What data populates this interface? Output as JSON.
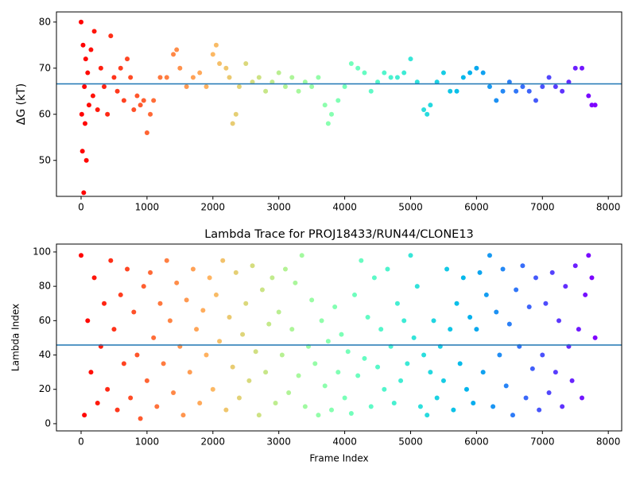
{
  "chart_data": [
    {
      "type": "scatter",
      "y_label": "ΔG (kT)",
      "x": [
        0,
        10,
        20,
        30,
        40,
        50,
        60,
        70,
        80,
        100,
        120,
        150,
        180,
        200,
        250,
        300,
        350,
        400,
        450,
        500,
        550,
        600,
        650,
        700,
        750,
        800,
        850,
        900,
        950,
        1000,
        1050,
        1100,
        1200,
        1300,
        1400,
        1450,
        1500,
        1600,
        1700,
        1800,
        1900,
        2000,
        2050,
        2100,
        2200,
        2250,
        2300,
        2350,
        2400,
        2500,
        2600,
        2700,
        2800,
        2900,
        3000,
        3100,
        3200,
        3300,
        3400,
        3500,
        3600,
        3700,
        3750,
        3800,
        3900,
        4000,
        4100,
        4200,
        4300,
        4400,
        4500,
        4600,
        4700,
        4800,
        4900,
        5000,
        5100,
        5200,
        5250,
        5300,
        5400,
        5500,
        5600,
        5700,
        5800,
        5900,
        6000,
        6100,
        6200,
        6300,
        6400,
        6500,
        6600,
        6700,
        6800,
        6900,
        7000,
        7100,
        7200,
        7300,
        7400,
        7500,
        7600,
        7700,
        7750,
        7800
      ],
      "values": [
        80,
        60,
        52,
        75,
        43,
        66,
        58,
        72,
        50,
        69,
        62,
        74,
        64,
        78,
        61,
        70,
        66,
        60,
        77,
        68,
        65,
        70,
        63,
        72,
        68,
        61,
        64,
        62,
        63,
        56,
        60,
        63,
        68,
        68,
        73,
        74,
        70,
        66,
        68,
        69,
        66,
        73,
        75,
        71,
        70,
        68,
        58,
        60,
        66,
        71,
        67,
        68,
        65,
        67,
        69,
        66,
        68,
        65,
        67,
        66,
        68,
        62,
        58,
        60,
        63,
        66,
        71,
        70,
        69,
        65,
        67,
        69,
        68,
        68,
        69,
        72,
        67,
        61,
        60,
        62,
        67,
        69,
        65,
        65,
        68,
        69,
        70,
        69,
        66,
        63,
        65,
        67,
        65,
        66,
        65,
        63,
        66,
        68,
        66,
        65,
        67,
        70,
        70,
        64,
        62,
        62
      ],
      "colormap": "rainbow_r",
      "hline": 66.6,
      "hline_color": "#1f77b4",
      "xlim": [
        -374,
        8203
      ],
      "ylim": [
        42.2,
        82.2
      ],
      "xticks": [
        0,
        1000,
        2000,
        3000,
        4000,
        5000,
        6000,
        7000,
        8000
      ],
      "yticks": [
        50,
        60,
        70,
        80
      ]
    },
    {
      "type": "scatter",
      "title": "Lambda Trace for PROJ18433/RUN44/CLONE13",
      "x_label": "Frame Index",
      "y_label": "Lambda Index",
      "x": [
        0,
        50,
        100,
        150,
        200,
        250,
        300,
        350,
        400,
        450,
        500,
        550,
        600,
        650,
        700,
        750,
        800,
        850,
        900,
        950,
        1000,
        1050,
        1100,
        1150,
        1200,
        1250,
        1300,
        1350,
        1400,
        1450,
        1500,
        1550,
        1600,
        1650,
        1700,
        1750,
        1800,
        1850,
        1900,
        1950,
        2000,
        2050,
        2100,
        2150,
        2200,
        2250,
        2300,
        2350,
        2400,
        2450,
        2500,
        2550,
        2600,
        2650,
        2700,
        2750,
        2800,
        2850,
        2900,
        2950,
        3000,
        3050,
        3100,
        3150,
        3200,
        3250,
        3300,
        3350,
        3400,
        3450,
        3500,
        3550,
        3600,
        3650,
        3700,
        3750,
        3800,
        3850,
        3900,
        3950,
        4000,
        4050,
        4100,
        4150,
        4200,
        4250,
        4300,
        4350,
        4400,
        4450,
        4500,
        4550,
        4600,
        4650,
        4700,
        4750,
        4800,
        4850,
        4900,
        4950,
        5000,
        5050,
        5100,
        5150,
        5200,
        5250,
        5300,
        5350,
        5400,
        5450,
        5500,
        5550,
        5600,
        5650,
        5700,
        5750,
        5800,
        5850,
        5900,
        5950,
        6000,
        6050,
        6100,
        6150,
        6200,
        6250,
        6300,
        6350,
        6400,
        6450,
        6500,
        6550,
        6600,
        6650,
        6700,
        6750,
        6800,
        6850,
        6900,
        6950,
        7000,
        7050,
        7100,
        7150,
        7200,
        7250,
        7300,
        7350,
        7400,
        7450,
        7500,
        7550,
        7600,
        7650,
        7700,
        7750,
        7800
      ],
      "values": [
        98,
        5,
        60,
        30,
        85,
        12,
        45,
        70,
        20,
        95,
        55,
        8,
        75,
        35,
        90,
        15,
        65,
        40,
        3,
        80,
        25,
        88,
        50,
        10,
        70,
        35,
        95,
        60,
        18,
        82,
        45,
        5,
        72,
        30,
        90,
        55,
        12,
        66,
        40,
        85,
        20,
        75,
        48,
        95,
        8,
        62,
        33,
        88,
        15,
        52,
        70,
        25,
        92,
        42,
        5,
        78,
        30,
        58,
        85,
        12,
        65,
        40,
        90,
        18,
        55,
        82,
        28,
        98,
        10,
        45,
        72,
        35,
        5,
        60,
        22,
        48,
        8,
        68,
        30,
        52,
        15,
        42,
        6,
        75,
        28,
        95,
        38,
        62,
        10,
        85,
        33,
        55,
        20,
        90,
        45,
        12,
        70,
        25,
        60,
        35,
        98,
        50,
        80,
        10,
        40,
        5,
        30,
        60,
        15,
        45,
        25,
        90,
        55,
        8,
        70,
        35,
        85,
        20,
        62,
        12,
        55,
        88,
        30,
        75,
        98,
        10,
        65,
        40,
        90,
        22,
        58,
        5,
        78,
        45,
        92,
        15,
        68,
        32,
        85,
        8,
        40,
        70,
        18,
        88,
        30,
        60,
        10,
        80,
        45,
        25,
        92,
        55,
        15,
        75,
        98,
        85,
        50
      ],
      "colormap": "rainbow_r",
      "hline": 45.8,
      "hline_color": "#1f77b4",
      "xlim": [
        -374,
        8203
      ],
      "ylim": [
        -4.2,
        104.6
      ],
      "xticks": [
        0,
        1000,
        2000,
        3000,
        4000,
        5000,
        6000,
        7000,
        8000
      ],
      "yticks": [
        0,
        20,
        40,
        60,
        80,
        100
      ]
    }
  ]
}
